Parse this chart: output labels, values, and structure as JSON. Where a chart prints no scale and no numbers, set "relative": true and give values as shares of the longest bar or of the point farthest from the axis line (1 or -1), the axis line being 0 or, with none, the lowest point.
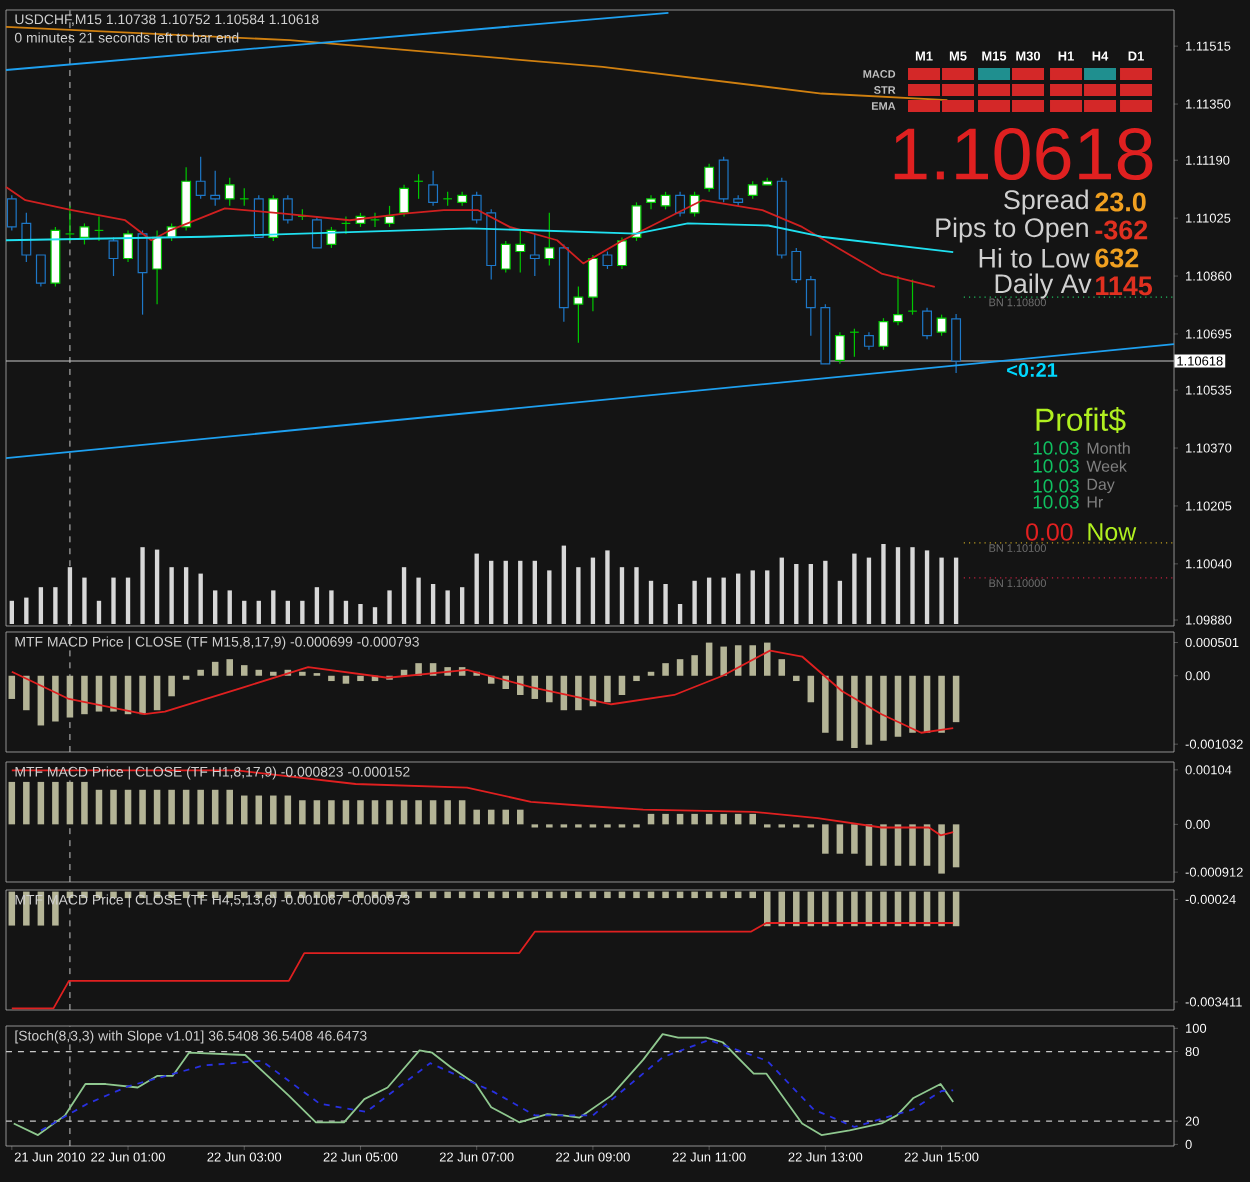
{
  "chart_data": [
    {
      "type": "candlestick",
      "title": "USDCHF,M15  1.10738 1.10752 1.10584 1.10618",
      "subtitle": "0 minutes 21 seconds left to bar end",
      "x": [
        "2010-06-21T23:00",
        "2010-06-21T23:15",
        "2010-06-21T23:30",
        "2010-06-21T23:45",
        "2010-06-22T00:00",
        "2010-06-22T00:15",
        "2010-06-22T00:30",
        "2010-06-22T00:45",
        "2010-06-22T01:00",
        "2010-06-22T01:15",
        "2010-06-22T01:30",
        "2010-06-22T01:45",
        "2010-06-22T02:00",
        "2010-06-22T02:15",
        "2010-06-22T02:30",
        "2010-06-22T02:45",
        "2010-06-22T03:00",
        "2010-06-22T03:15",
        "2010-06-22T03:30",
        "2010-06-22T03:45",
        "2010-06-22T04:00",
        "2010-06-22T04:15",
        "2010-06-22T04:30",
        "2010-06-22T04:45",
        "2010-06-22T05:00",
        "2010-06-22T05:15",
        "2010-06-22T05:30",
        "2010-06-22T05:45",
        "2010-06-22T06:00",
        "2010-06-22T06:15",
        "2010-06-22T06:30",
        "2010-06-22T06:45",
        "2010-06-22T07:00",
        "2010-06-22T07:15",
        "2010-06-22T07:30",
        "2010-06-22T07:45",
        "2010-06-22T08:00",
        "2010-06-22T08:15",
        "2010-06-22T08:30",
        "2010-06-22T08:45",
        "2010-06-22T09:00",
        "2010-06-22T09:15",
        "2010-06-22T09:30",
        "2010-06-22T09:45",
        "2010-06-22T10:00",
        "2010-06-22T10:15",
        "2010-06-22T10:30",
        "2010-06-22T10:45",
        "2010-06-22T11:00",
        "2010-06-22T11:15",
        "2010-06-22T11:30",
        "2010-06-22T11:45",
        "2010-06-22T12:00",
        "2010-06-22T12:15",
        "2010-06-22T12:30",
        "2010-06-22T12:45",
        "2010-06-22T13:00",
        "2010-06-22T13:15",
        "2010-06-22T13:30",
        "2010-06-22T13:45",
        "2010-06-22T14:00",
        "2010-06-22T14:15",
        "2010-06-22T14:30",
        "2010-06-22T14:45",
        "2010-06-22T15:00",
        "2010-06-22T15:15"
      ],
      "ohlc": [
        [
          1.1108,
          1.1109,
          1.1099,
          1.11
        ],
        [
          1.1101,
          1.1104,
          1.109,
          1.1092
        ],
        [
          1.1092,
          1.1092,
          1.1083,
          1.1084
        ],
        [
          1.1084,
          1.11,
          1.1083,
          1.1099
        ],
        [
          1.1098,
          1.1106,
          1.1096,
          1.1098
        ],
        [
          1.1097,
          1.1101,
          1.1095,
          1.11
        ],
        [
          1.1099,
          1.1103,
          1.1096,
          1.1099
        ],
        [
          1.1096,
          1.1097,
          1.1086,
          1.1091
        ],
        [
          1.1091,
          1.1099,
          1.109,
          1.1098
        ],
        [
          1.1098,
          1.1099,
          1.1075,
          1.1087
        ],
        [
          1.1088,
          1.1099,
          1.1078,
          1.1097
        ],
        [
          1.1097,
          1.1101,
          1.1096,
          1.11
        ],
        [
          1.11,
          1.1117,
          1.1099,
          1.1113
        ],
        [
          1.1113,
          1.112,
          1.1108,
          1.1109
        ],
        [
          1.1109,
          1.1116,
          1.1106,
          1.1108
        ],
        [
          1.1108,
          1.1114,
          1.1106,
          1.1112
        ],
        [
          1.1108,
          1.1111,
          1.1106,
          1.1108
        ],
        [
          1.1108,
          1.1109,
          1.1097,
          1.1097
        ],
        [
          1.1097,
          1.1109,
          1.1096,
          1.1108
        ],
        [
          1.1108,
          1.1109,
          1.1101,
          1.1102
        ],
        [
          1.1103,
          1.1105,
          1.1102,
          1.1103
        ],
        [
          1.1102,
          1.1103,
          1.1094,
          1.1094
        ],
        [
          1.1095,
          1.11,
          1.1094,
          1.1099
        ],
        [
          1.1101,
          1.1103,
          1.1098,
          1.1101
        ],
        [
          1.1101,
          1.1104,
          1.11,
          1.1103
        ],
        [
          1.1102,
          1.1104,
          1.11,
          1.1102
        ],
        [
          1.1101,
          1.1106,
          1.11,
          1.1103
        ],
        [
          1.1104,
          1.1112,
          1.1103,
          1.1111
        ],
        [
          1.1113,
          1.1115,
          1.1108,
          1.1113
        ],
        [
          1.1112,
          1.1116,
          1.1106,
          1.1107
        ],
        [
          1.1108,
          1.111,
          1.1106,
          1.1108
        ],
        [
          1.1107,
          1.111,
          1.1106,
          1.1109
        ],
        [
          1.1109,
          1.111,
          1.1101,
          1.1102
        ],
        [
          1.1104,
          1.1105,
          1.1085,
          1.1089
        ],
        [
          1.1088,
          1.1096,
          1.1087,
          1.1095
        ],
        [
          1.1093,
          1.1099,
          1.1087,
          1.1095
        ],
        [
          1.1092,
          1.1098,
          1.1086,
          1.1091
        ],
        [
          1.1091,
          1.1104,
          1.1089,
          1.1094
        ],
        [
          1.1094,
          1.1095,
          1.1073,
          1.1077
        ],
        [
          1.1078,
          1.1083,
          1.1067,
          1.108
        ],
        [
          1.108,
          1.1092,
          1.1076,
          1.1091
        ],
        [
          1.1092,
          1.1093,
          1.1088,
          1.1089
        ],
        [
          1.1089,
          1.1097,
          1.1088,
          1.1096
        ],
        [
          1.1097,
          1.1107,
          1.1096,
          1.1106
        ],
        [
          1.1107,
          1.1109,
          1.1105,
          1.1108
        ],
        [
          1.1106,
          1.111,
          1.1105,
          1.1109
        ],
        [
          1.1109,
          1.111,
          1.1103,
          1.1104
        ],
        [
          1.1104,
          1.111,
          1.1103,
          1.1109
        ],
        [
          1.1111,
          1.1118,
          1.111,
          1.1117
        ],
        [
          1.1119,
          1.112,
          1.1107,
          1.1108
        ],
        [
          1.1108,
          1.1109,
          1.1106,
          1.1107
        ],
        [
          1.1109,
          1.1113,
          1.1108,
          1.1112
        ],
        [
          1.1112,
          1.1114,
          1.1112,
          1.1113
        ],
        [
          1.1113,
          1.1114,
          1.1091,
          1.1092
        ],
        [
          1.1093,
          1.1094,
          1.1084,
          1.1085
        ],
        [
          1.1085,
          1.1086,
          1.1069,
          1.1077
        ],
        [
          1.1077,
          1.1078,
          1.1061,
          1.1061
        ],
        [
          1.1062,
          1.107,
          1.1061,
          1.1069
        ],
        [
          1.107,
          1.1071,
          1.1063,
          1.107
        ],
        [
          1.1069,
          1.107,
          1.1065,
          1.1066
        ],
        [
          1.1066,
          1.1074,
          1.1065,
          1.1073
        ],
        [
          1.1073,
          1.1086,
          1.1072,
          1.1075
        ],
        [
          1.1076,
          1.1085,
          1.1075,
          1.1076
        ],
        [
          1.1076,
          1.1077,
          1.1068,
          1.1069
        ],
        [
          1.107,
          1.1075,
          1.1069,
          1.1074
        ],
        [
          1.10738,
          1.10752,
          1.10584,
          1.10618
        ]
      ],
      "colors": [
        "#1e78c8",
        "#1e78c8",
        "#1e78c8",
        "#00c800",
        "#00c800",
        "#00c800",
        "#00c800",
        "#1e78c8",
        "#00c800",
        "#1e78c8",
        "#00c800",
        "#00c800",
        "#00c800",
        "#1e78c8",
        "#1e78c8",
        "#00c800",
        "#00c800",
        "#1e78c8",
        "#00c800",
        "#1e78c8",
        "#00c800",
        "#1e78c8",
        "#00c800",
        "#00c800",
        "#00c800",
        "#00c800",
        "#00c800",
        "#00c800",
        "#00c800",
        "#1e78c8",
        "#00c800",
        "#00c800",
        "#1e78c8",
        "#1e78c8",
        "#00c800",
        "#00c800",
        "#1e78c8",
        "#00c800",
        "#1e78c8",
        "#00c800",
        "#00c800",
        "#1e78c8",
        "#00c800",
        "#00c800",
        "#00c800",
        "#00c800",
        "#1e78c8",
        "#00c800",
        "#00c800",
        "#1e78c8",
        "#1e78c8",
        "#00c800",
        "#00c800",
        "#1e78c8",
        "#1e78c8",
        "#1e78c8",
        "#1e78c8",
        "#00c800",
        "#00c800",
        "#1e78c8",
        "#00c800",
        "#00c800",
        "#00c800",
        "#1e78c8",
        "#00c800",
        "#1e78c8"
      ],
      "series": [
        {
          "type": "line",
          "color": "#d02020",
          "x": [
            "2010-06-21T22:54",
            "2010-06-21T23:14",
            "2010-06-22T00:02",
            "2010-06-22T00:57",
            "2010-06-22T01:24",
            "2010-06-22T01:44",
            "2010-06-22T02:40",
            "2010-06-22T03:41",
            "2010-06-22T04:49",
            "2010-06-22T05:45",
            "2010-06-22T06:26",
            "2010-06-22T07:01",
            "2010-06-22T07:34",
            "2010-06-22T08:23",
            "2010-06-22T08:50",
            "2010-06-22T09:31",
            "2010-06-22T10:53",
            "2010-06-22T11:55",
            "2010-06-22T12:36",
            "2010-06-22T13:58",
            "2010-06-22T14:53"
          ],
          "values": [
            1.11114,
            1.11076,
            1.11048,
            1.11019,
            1.10962,
            1.10991,
            1.11053,
            1.11038,
            1.11019,
            1.11038,
            1.11048,
            1.11048,
            1.11,
            1.10962,
            1.10896,
            1.10962,
            1.11076,
            1.11048,
            1.11,
            1.10867,
            1.10829
          ]
        },
        {
          "type": "line",
          "color": "#20e0f0",
          "x": [
            "2010-06-21T22:54",
            "2010-06-22T02:19",
            "2010-06-22T06:53",
            "2010-06-22T09:45",
            "2010-06-22T10:38",
            "2010-06-22T12:01",
            "2010-06-22T12:56",
            "2010-06-22T15:12"
          ],
          "values": [
            1.10962,
            1.10972,
            1.10996,
            1.10981,
            1.1101,
            1.11004,
            1.10972,
            1.10928
          ]
        },
        {
          "type": "line",
          "color": "#d08010",
          "x": [
            "2010-06-21T22:54",
            "2010-06-22T03:47",
            "2010-06-22T09:10",
            "2010-06-22T12:56",
            "2010-06-22T15:06"
          ],
          "values": [
            1.1157,
            1.11532,
            1.11456,
            1.1138,
            1.11361
          ]
        },
        {
          "type": "line",
          "color": "#1ea0f0",
          "x": [
            "2010-06-21T22:54",
            "2010-06-22T10:18"
          ],
          "values": [
            1.11447,
            1.1161
          ]
        },
        {
          "type": "line",
          "color": "#1ea0f0",
          "x": [
            "2010-06-21T22:54",
            "2010-06-22T19:00"
          ],
          "values": [
            1.10341,
            1.10666
          ]
        }
      ],
      "xlim": [
        "2010-06-21T22:54",
        "2010-06-22T19:00"
      ],
      "ylim": [
        1.09863,
        1.11618
      ],
      "yticks": [
        1.11515,
        {
          "value": 1.1135,
          "label": "1.11350"
        },
        {
          "value": 1.1119,
          "label": "1.11190"
        },
        1.11025,
        {
          "value": 1.1086,
          "label": "1.10860"
        },
        1.10695,
        1.10535,
        {
          "value": 1.1037,
          "label": "1.10370"
        },
        1.10205,
        {
          "value": 1.1004,
          "label": "1.10040"
        },
        {
          "value": 1.0988,
          "label": "1.09880"
        }
      ],
      "tick_labels": "y",
      "ref_lines": [
        {
          "axis": "y",
          "value": 1.10618,
          "label": "1.10618",
          "color": "#c8c8c8",
          "line_style": "solid"
        },
        {
          "axis": "y",
          "value": 1.108,
          "label": "BN 1.10800",
          "color": "#20c060",
          "line_style": "dotted"
        },
        {
          "axis": "y",
          "value": 1.101,
          "label": "BN 1.10100",
          "color": "#c0a020",
          "line_style": "dotted"
        },
        {
          "axis": "y",
          "value": 1.1,
          "label": "BN 1.10000",
          "color": "#c02040",
          "line_style": "dotted"
        },
        {
          "axis": "x",
          "value": "2010-06-22T00:00",
          "color": "#c8c8c8",
          "line_style": "dashed"
        }
      ],
      "annotations": [
        "M1",
        "M5",
        "M15",
        "M30",
        "H1",
        "H4",
        "D1",
        "MACD",
        "STR",
        "EMA",
        "1.10618",
        "Spread",
        "23.0",
        "Pips to Open",
        "-362",
        "Hi to Low",
        "632",
        "Daily Av",
        "1145",
        "<0:21",
        "Profit$",
        "10.03",
        "Month",
        "10.03",
        "Week",
        "10.03",
        "Day",
        "10.03",
        "Hr",
        "0.00",
        "Now"
      ]
    },
    {
      "type": "bar",
      "relative": true,
      "color": "#d8d8d8",
      "tick_labels": false,
      "xlim": [
        "2010-06-21T22:54",
        "2010-06-22T19:00"
      ],
      "x": [
        "2010-06-21T23:00",
        "2010-06-21T23:15",
        "2010-06-21T23:30",
        "2010-06-21T23:45",
        "2010-06-22T00:00",
        "2010-06-22T00:15",
        "2010-06-22T00:30",
        "2010-06-22T00:45",
        "2010-06-22T01:00",
        "2010-06-22T01:15",
        "2010-06-22T01:30",
        "2010-06-22T01:45",
        "2010-06-22T02:00",
        "2010-06-22T02:15",
        "2010-06-22T02:30",
        "2010-06-22T02:45",
        "2010-06-22T03:00",
        "2010-06-22T03:15",
        "2010-06-22T03:30",
        "2010-06-22T03:45",
        "2010-06-22T04:00",
        "2010-06-22T04:15",
        "2010-06-22T04:30",
        "2010-06-22T04:45",
        "2010-06-22T05:00",
        "2010-06-22T05:15",
        "2010-06-22T05:30",
        "2010-06-22T05:45",
        "2010-06-22T06:00",
        "2010-06-22T06:15",
        "2010-06-22T06:30",
        "2010-06-22T06:45",
        "2010-06-22T07:00",
        "2010-06-22T07:15",
        "2010-06-22T07:30",
        "2010-06-22T07:45",
        "2010-06-22T08:00",
        "2010-06-22T08:15",
        "2010-06-22T08:30",
        "2010-06-22T08:45",
        "2010-06-22T09:00",
        "2010-06-22T09:15",
        "2010-06-22T09:30",
        "2010-06-22T09:45",
        "2010-06-22T10:00",
        "2010-06-22T10:15",
        "2010-06-22T10:30",
        "2010-06-22T10:45",
        "2010-06-22T11:00",
        "2010-06-22T11:15",
        "2010-06-22T11:30",
        "2010-06-22T11:45",
        "2010-06-22T12:00",
        "2010-06-22T12:15",
        "2010-06-22T12:30",
        "2010-06-22T12:45",
        "2010-06-22T13:00",
        "2010-06-22T13:15",
        "2010-06-22T13:30",
        "2010-06-22T13:45",
        "2010-06-22T14:00",
        "2010-06-22T14:15",
        "2010-06-22T14:30",
        "2010-06-22T14:45",
        "2010-06-22T15:00",
        "2010-06-22T15:15"
      ],
      "values": [
        0.29,
        0.33,
        0.46,
        0.46,
        0.71,
        0.58,
        0.29,
        0.58,
        0.58,
        0.96,
        0.93,
        0.71,
        0.71,
        0.63,
        0.42,
        0.42,
        0.29,
        0.29,
        0.42,
        0.29,
        0.29,
        0.46,
        0.42,
        0.29,
        0.25,
        0.21,
        0.42,
        0.71,
        0.58,
        0.5,
        0.42,
        0.46,
        0.88,
        0.79,
        0.79,
        0.79,
        0.79,
        0.67,
        0.98,
        0.71,
        0.83,
        0.92,
        0.71,
        0.71,
        0.54,
        0.5,
        0.25,
        0.54,
        0.58,
        0.58,
        0.63,
        0.67,
        0.67,
        0.83,
        0.75,
        0.75,
        0.79,
        0.54,
        0.88,
        0.83,
        1,
        0.96,
        0.96,
        0.92,
        0.83,
        0.83
      ]
    },
    {
      "type": "bar",
      "title": "MTF MACD Price | CLOSE  (TF M15,8,17,9) -0.000699 -0.000793",
      "color": "#b4b496",
      "tick_labels": "y",
      "xlim": [
        "2010-06-21T22:54",
        "2010-06-22T19:00"
      ],
      "ylim": [
        -0.00115,
        0.00066
      ],
      "yticks": [
        0.000501,
        {
          "value": 0,
          "label": "0.00"
        },
        -0.001032
      ],
      "x": [
        "2010-06-21T23:00",
        "2010-06-21T23:15",
        "2010-06-21T23:30",
        "2010-06-21T23:45",
        "2010-06-22T00:00",
        "2010-06-22T00:15",
        "2010-06-22T00:30",
        "2010-06-22T00:45",
        "2010-06-22T01:00",
        "2010-06-22T01:15",
        "2010-06-22T01:30",
        "2010-06-22T01:45",
        "2010-06-22T02:00",
        "2010-06-22T02:15",
        "2010-06-22T02:30",
        "2010-06-22T02:45",
        "2010-06-22T03:00",
        "2010-06-22T03:15",
        "2010-06-22T03:30",
        "2010-06-22T03:45",
        "2010-06-22T04:00",
        "2010-06-22T04:15",
        "2010-06-22T04:30",
        "2010-06-22T04:45",
        "2010-06-22T05:00",
        "2010-06-22T05:15",
        "2010-06-22T05:30",
        "2010-06-22T05:45",
        "2010-06-22T06:00",
        "2010-06-22T06:15",
        "2010-06-22T06:30",
        "2010-06-22T06:45",
        "2010-06-22T07:00",
        "2010-06-22T07:15",
        "2010-06-22T07:30",
        "2010-06-22T07:45",
        "2010-06-22T08:00",
        "2010-06-22T08:15",
        "2010-06-22T08:30",
        "2010-06-22T08:45",
        "2010-06-22T09:00",
        "2010-06-22T09:15",
        "2010-06-22T09:30",
        "2010-06-22T09:45",
        "2010-06-22T10:00",
        "2010-06-22T10:15",
        "2010-06-22T10:30",
        "2010-06-22T10:45",
        "2010-06-22T11:00",
        "2010-06-22T11:15",
        "2010-06-22T11:30",
        "2010-06-22T11:45",
        "2010-06-22T12:00",
        "2010-06-22T12:15",
        "2010-06-22T12:30",
        "2010-06-22T12:45",
        "2010-06-22T13:00",
        "2010-06-22T13:15",
        "2010-06-22T13:30",
        "2010-06-22T13:45",
        "2010-06-22T14:00",
        "2010-06-22T14:15",
        "2010-06-22T14:30",
        "2010-06-22T14:45",
        "2010-06-22T15:00",
        "2010-06-22T15:15"
      ],
      "values": [
        -0.00035,
        -0.00052,
        -0.00075,
        -0.00069,
        -0.00063,
        -0.00058,
        -0.00054,
        -0.00054,
        -0.00058,
        -0.00058,
        -0.00052,
        -0.00031,
        -6e-05,
        9e-05,
        0.00021,
        0.00025,
        0.00016,
        9e-05,
        6e-05,
        9e-05,
        6e-05,
        4e-05,
        -8e-05,
        -0.00012,
        -8e-05,
        -8e-05,
        -6e-05,
        9e-05,
        0.00019,
        0.00019,
        0.00013,
        0.00013,
        6e-05,
        -0.00012,
        -0.0002,
        -0.00029,
        -0.00035,
        -0.0004,
        -0.00052,
        -0.00052,
        -0.00046,
        -0.0004,
        -0.00029,
        -8e-05,
        6e-05,
        0.00019,
        0.00025,
        0.00031,
        0.0005,
        0.00044,
        0.00046,
        0.00046,
        0.0005,
        0.00025,
        -8e-05,
        -0.0004,
        -0.00086,
        -0.00098,
        -0.00109,
        -0.00104,
        -0.00098,
        -0.00092,
        -0.00086,
        -0.00086,
        -0.00086,
        -0.0007
      ],
      "series": [
        {
          "type": "line",
          "color": "#e02020",
          "x": [
            "2010-06-21T23:00",
            "2010-06-21T23:59",
            "2010-06-22T01:17",
            "2010-06-22T01:38",
            "2010-06-22T03:00",
            "2010-06-22T04:06",
            "2010-06-22T05:28",
            "2010-06-22T06:50",
            "2010-06-22T07:56",
            "2010-06-22T09:19",
            "2010-06-22T10:24",
            "2010-06-22T11:14",
            "2010-06-22T12:03",
            "2010-06-22T12:36",
            "2010-06-22T13:17",
            "2010-06-22T13:58",
            "2010-06-22T14:39",
            "2010-06-22T15:12"
          ],
          "values": [
            6e-05,
            -0.00035,
            -0.00058,
            -0.00054,
            -0.00017,
            0.00013,
            -3e-05,
            9e-05,
            -0.00017,
            -0.00043,
            -0.00029,
            0,
            0.00038,
            0.00029,
            -0.00023,
            -0.00058,
            -0.00086,
            -0.00079
          ]
        }
      ],
      "ref_lines": [
        {
          "axis": "x",
          "value": "2010-06-22T00:00",
          "color": "#c8c8c8",
          "line_style": "dashed"
        }
      ]
    },
    {
      "type": "bar",
      "title": "MTF MACD Price | CLOSE  (TF H1,8,17,9) -0.000823 -0.000152",
      "color": "#b4b496",
      "tick_labels": "y",
      "xlim": [
        "2010-06-21T22:54",
        "2010-06-22T19:00"
      ],
      "ylim": [
        -0.0011,
        0.00119
      ],
      "yticks": [
        0.00104,
        {
          "value": 0,
          "label": "0.00"
        },
        -0.000912
      ],
      "x": [
        "2010-06-21T23:00",
        "2010-06-21T23:15",
        "2010-06-21T23:30",
        "2010-06-21T23:45",
        "2010-06-22T00:00",
        "2010-06-22T00:15",
        "2010-06-22T00:30",
        "2010-06-22T00:45",
        "2010-06-22T01:00",
        "2010-06-22T01:15",
        "2010-06-22T01:30",
        "2010-06-22T01:45",
        "2010-06-22T02:00",
        "2010-06-22T02:15",
        "2010-06-22T02:30",
        "2010-06-22T02:45",
        "2010-06-22T03:00",
        "2010-06-22T03:15",
        "2010-06-22T03:30",
        "2010-06-22T03:45",
        "2010-06-22T04:00",
        "2010-06-22T04:15",
        "2010-06-22T04:30",
        "2010-06-22T04:45",
        "2010-06-22T05:00",
        "2010-06-22T05:15",
        "2010-06-22T05:30",
        "2010-06-22T05:45",
        "2010-06-22T06:00",
        "2010-06-22T06:15",
        "2010-06-22T06:30",
        "2010-06-22T06:45",
        "2010-06-22T07:00",
        "2010-06-22T07:15",
        "2010-06-22T07:30",
        "2010-06-22T07:45",
        "2010-06-22T08:00",
        "2010-06-22T08:15",
        "2010-06-22T08:30",
        "2010-06-22T08:45",
        "2010-06-22T09:00",
        "2010-06-22T09:15",
        "2010-06-22T09:30",
        "2010-06-22T09:45",
        "2010-06-22T10:00",
        "2010-06-22T10:15",
        "2010-06-22T10:30",
        "2010-06-22T10:45",
        "2010-06-22T11:00",
        "2010-06-22T11:15",
        "2010-06-22T11:30",
        "2010-06-22T11:45",
        "2010-06-22T12:00",
        "2010-06-22T12:15",
        "2010-06-22T12:30",
        "2010-06-22T12:45",
        "2010-06-22T13:00",
        "2010-06-22T13:15",
        "2010-06-22T13:30",
        "2010-06-22T13:45",
        "2010-06-22T14:00",
        "2010-06-22T14:15",
        "2010-06-22T14:30",
        "2010-06-22T14:45",
        "2010-06-22T15:00",
        "2010-06-22T15:15"
      ],
      "values": [
        0.00081,
        0.00081,
        0.00081,
        0.00081,
        0.00081,
        0.00081,
        0.00066,
        0.00066,
        0.00066,
        0.00066,
        0.00066,
        0.00066,
        0.00066,
        0.00066,
        0.00066,
        0.00066,
        0.00055,
        0.00055,
        0.00055,
        0.00055,
        0.00046,
        0.00046,
        0.00046,
        0.00046,
        0.00046,
        0.00046,
        0.00046,
        0.00046,
        0.00046,
        0.00046,
        0.00046,
        0.00046,
        0.00028,
        0.00028,
        0.00028,
        0.00028,
        -6e-05,
        -6e-05,
        -6e-05,
        -6e-05,
        -6e-05,
        -6e-05,
        -6e-05,
        -6e-05,
        0.0002,
        0.0002,
        0.0002,
        0.0002,
        0.0002,
        0.0002,
        0.0002,
        0.0002,
        -6e-05,
        -6e-05,
        -6e-05,
        -6e-05,
        -0.00056,
        -0.00056,
        -0.00056,
        -0.00079,
        -0.00079,
        -0.00079,
        -0.00079,
        -0.00079,
        -0.00094,
        -0.00082
      ],
      "series": [
        {
          "type": "line",
          "color": "#e02020",
          "x": [
            "2010-06-21T23:00",
            "2010-06-22T02:52",
            "2010-06-22T04:55",
            "2010-06-22T06:50",
            "2010-06-22T07:56",
            "2010-06-22T08:54",
            "2010-06-22T09:52",
            "2010-06-22T11:46",
            "2010-06-22T12:52",
            "2010-06-22T13:58",
            "2010-06-22T14:47",
            "2010-06-22T14:59",
            "2010-06-22T15:12"
          ],
          "values": [
            0.00103,
            0.00103,
            0.00077,
            0.0007,
            0.00043,
            0.00035,
            0.00028,
            0.00024,
            0.00012,
            -6e-05,
            -6e-05,
            -0.00021,
            -0.00015
          ]
        }
      ],
      "ref_lines": [
        {
          "axis": "x",
          "value": "2010-06-22T00:00",
          "color": "#c8c8c8",
          "line_style": "dashed"
        }
      ]
    },
    {
      "type": "bar",
      "title": "MTF MACD Price | CLOSE  (TF H4,5,13,6) -0.001067 -0.000973",
      "color": "#b4b496",
      "tick_labels": "y",
      "xlim": [
        "2010-06-21T22:54",
        "2010-06-22T19:00"
      ],
      "ylim": [
        -0.00366,
        5e-05
      ],
      "yticks": [
        -0.00024,
        -0.003411
      ],
      "x": [
        "2010-06-21T23:00",
        "2010-06-21T23:15",
        "2010-06-21T23:30",
        "2010-06-21T23:45",
        "2010-06-22T00:00",
        "2010-06-22T00:15",
        "2010-06-22T00:30",
        "2010-06-22T00:45",
        "2010-06-22T01:00",
        "2010-06-22T01:15",
        "2010-06-22T01:30",
        "2010-06-22T01:45",
        "2010-06-22T02:00",
        "2010-06-22T02:15",
        "2010-06-22T02:30",
        "2010-06-22T02:45",
        "2010-06-22T03:00",
        "2010-06-22T03:15",
        "2010-06-22T03:30",
        "2010-06-22T03:45",
        "2010-06-22T04:00",
        "2010-06-22T04:15",
        "2010-06-22T04:30",
        "2010-06-22T04:45",
        "2010-06-22T05:00",
        "2010-06-22T05:15",
        "2010-06-22T05:30",
        "2010-06-22T05:45",
        "2010-06-22T06:00",
        "2010-06-22T06:15",
        "2010-06-22T06:30",
        "2010-06-22T06:45",
        "2010-06-22T07:00",
        "2010-06-22T07:15",
        "2010-06-22T07:30",
        "2010-06-22T07:45",
        "2010-06-22T08:00",
        "2010-06-22T08:15",
        "2010-06-22T08:30",
        "2010-06-22T08:45",
        "2010-06-22T09:00",
        "2010-06-22T09:15",
        "2010-06-22T09:30",
        "2010-06-22T09:45",
        "2010-06-22T10:00",
        "2010-06-22T10:15",
        "2010-06-22T10:30",
        "2010-06-22T10:45",
        "2010-06-22T11:00",
        "2010-06-22T11:15",
        "2010-06-22T11:30",
        "2010-06-22T11:45",
        "2010-06-22T12:00",
        "2010-06-22T12:15",
        "2010-06-22T12:30",
        "2010-06-22T12:45",
        "2010-06-22T13:00",
        "2010-06-22T13:15",
        "2010-06-22T13:30",
        "2010-06-22T13:45",
        "2010-06-22T14:00",
        "2010-06-22T14:15",
        "2010-06-22T14:30",
        "2010-06-22T14:45",
        "2010-06-22T15:00",
        "2010-06-22T15:15"
      ],
      "values": [
        -0.00105,
        -0.00105,
        -0.00105,
        -0.00105,
        -0.0002,
        -0.0002,
        -0.0002,
        -0.0002,
        -0.0002,
        -0.0002,
        -0.0002,
        -0.0002,
        -0.0002,
        -0.0002,
        -0.0002,
        -0.0002,
        -0.0002,
        -0.0002,
        -0.0002,
        -0.0002,
        -0.0002,
        -0.0002,
        -0.0002,
        -0.0002,
        -0.0002,
        -0.0002,
        -0.0002,
        -0.0002,
        -0.0002,
        -0.0002,
        -0.0002,
        -0.0002,
        -0.0002,
        -0.0002,
        -0.0002,
        -0.0002,
        -0.0002,
        -0.0002,
        -0.0002,
        -0.0002,
        -0.0002,
        -0.0002,
        -0.0002,
        -0.0002,
        -0.0002,
        -0.0002,
        -0.0002,
        -0.0002,
        -0.0002,
        -0.0002,
        -0.0002,
        -0.0002,
        -0.00107,
        -0.00107,
        -0.00107,
        -0.00107,
        -0.00107,
        -0.00107,
        -0.00107,
        -0.00107,
        -0.00107,
        -0.00107,
        -0.00107,
        -0.00107,
        -0.00107,
        -0.00107
      ],
      "series": [
        {
          "type": "line",
          "color": "#e02020",
          "x": [
            "2010-06-21T23:00",
            "2010-06-21T23:43",
            "2010-06-21T23:59",
            "2010-06-22T03:46",
            "2010-06-22T04:02",
            "2010-06-22T07:44",
            "2010-06-22T08:00",
            "2010-06-22T11:43",
            "2010-06-22T11:59",
            "2010-06-22T15:12"
          ],
          "values": [
            -0.00361,
            -0.00361,
            -0.00276,
            -0.00276,
            -0.0019,
            -0.0019,
            -0.00124,
            -0.00124,
            -0.00097,
            -0.00097
          ]
        }
      ],
      "ref_lines": [
        {
          "axis": "x",
          "value": "2010-06-22T00:00",
          "color": "#c8c8c8",
          "line_style": "dashed"
        }
      ]
    },
    {
      "type": "line",
      "title": "[Stoch(8,3,3) with Slope v1.01] 36.5408 36.5408 46.6473",
      "xlim": [
        "2010-06-21T22:54",
        "2010-06-22T19:00"
      ],
      "ylim": [
        -1.4,
        102
      ],
      "yticks": [
        100,
        80,
        20,
        0
      ],
      "xticks": [
        {
          "value": "2010-06-21T23:00",
          "label": "21 Jun 2010"
        },
        {
          "value": "2010-06-22T01:00",
          "label": "22 Jun 01:00"
        },
        {
          "value": "2010-06-22T03:00",
          "label": "22 Jun 03:00"
        },
        {
          "value": "2010-06-22T05:00",
          "label": "22 Jun 05:00"
        },
        {
          "value": "2010-06-22T07:00",
          "label": "22 Jun 07:00"
        },
        {
          "value": "2010-06-22T09:00",
          "label": "22 Jun 09:00"
        },
        {
          "value": "2010-06-22T11:00",
          "label": "22 Jun 11:00"
        },
        {
          "value": "2010-06-22T13:00",
          "label": "22 Jun 13:00"
        },
        {
          "value": "2010-06-22T15:00",
          "label": "22 Jun 15:00"
        }
      ],
      "series": [
        {
          "color": "#8fc88f",
          "x": [
            "2010-06-21T23:02",
            "2010-06-21T23:27",
            "2010-06-21T23:55",
            "2010-06-22T00:16",
            "2010-06-22T00:37",
            "2010-06-22T01:10",
            "2010-06-22T01:30",
            "2010-06-22T01:46",
            "2010-06-22T02:03",
            "2010-06-22T03:01",
            "2010-06-22T03:46",
            "2010-06-22T04:14",
            "2010-06-22T04:43",
            "2010-06-22T05:04",
            "2010-06-22T05:28",
            "2010-06-22T06:01",
            "2010-06-22T06:14",
            "2010-06-22T06:34",
            "2010-06-22T06:59",
            "2010-06-22T07:15",
            "2010-06-22T07:44",
            "2010-06-22T08:13",
            "2010-06-22T08:29",
            "2010-06-22T08:46",
            "2010-06-22T09:19",
            "2010-06-22T09:52",
            "2010-06-22T10:12",
            "2010-06-22T10:28",
            "2010-06-22T10:57",
            "2010-06-22T11:14",
            "2010-06-22T11:46",
            "2010-06-22T11:59",
            "2010-06-22T12:36",
            "2010-06-22T12:56",
            "2010-06-22T13:25",
            "2010-06-22T13:58",
            "2010-06-22T14:14",
            "2010-06-22T14:31",
            "2010-06-22T14:59",
            "2010-06-22T15:12"
          ],
          "values": [
            18,
            8,
            25,
            52,
            52,
            49,
            59,
            59,
            79,
            77,
            42,
            19,
            19,
            39,
            49,
            81,
            79,
            66,
            52,
            32,
            19,
            26,
            25,
            23,
            42,
            73,
            95,
            92,
            92,
            88,
            61,
            61,
            18,
            8,
            12,
            18,
            25,
            40,
            52,
            36.5
          ]
        },
        {
          "color": "#2830e0",
          "line_style": "dashed",
          "x": [
            "2010-06-21T23:30",
            "2010-06-22T00:18",
            "2010-06-22T01:00",
            "2010-06-22T02:18",
            "2010-06-22T03:18",
            "2010-06-22T04:18",
            "2010-06-22T05:06",
            "2010-06-22T06:12",
            "2010-06-22T07:18",
            "2010-06-22T08:00",
            "2010-06-22T09:00",
            "2010-06-22T10:12",
            "2010-06-22T11:00",
            "2010-06-22T12:00",
            "2010-06-22T12:48",
            "2010-06-22T13:30",
            "2010-06-22T14:30",
            "2010-06-22T15:00",
            "2010-06-22T15:12"
          ],
          "values": [
            12,
            35,
            50,
            68,
            72,
            35,
            28,
            70,
            45,
            25,
            25,
            75,
            90,
            72,
            30,
            15,
            30,
            46,
            46.6
          ]
        }
      ],
      "ref_lines": [
        {
          "axis": "y",
          "value": 80,
          "color": "#c8c8c8",
          "line_style": "dashed"
        },
        {
          "axis": "y",
          "value": 20,
          "color": "#c8c8c8",
          "line_style": "dashed"
        },
        {
          "axis": "x",
          "value": "2010-06-22T00:00",
          "color": "#c8c8c8",
          "line_style": "dashed"
        }
      ]
    }
  ]
}
